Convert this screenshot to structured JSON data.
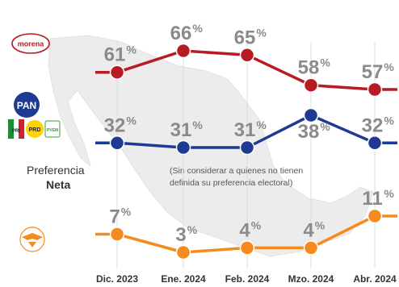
{
  "chart_data": {
    "type": "line",
    "categories": [
      "Dic. 2023",
      "Ene. 2024",
      "Feb. 2024",
      "Mzo. 2024",
      "Abr. 2024"
    ],
    "series": [
      {
        "logo": "morena",
        "color": "#b71c25",
        "values": [
          61,
          66,
          65,
          58,
          57
        ]
      },
      {
        "logo": "PAN / PRI / PRD",
        "color": "#1f3a93",
        "values": [
          32,
          31,
          31,
          38,
          32
        ]
      },
      {
        "logo": "movimiento-ciudadano-icon",
        "color": "#f58b1f",
        "values": [
          7,
          3,
          4,
          4,
          11
        ]
      }
    ],
    "title": "Preferencia Neta",
    "note": "(Sin considerar a quienes no tienen definida su preferencia electoral)",
    "value_suffix": "%"
  },
  "legend": {
    "morena_label": "morena",
    "pan_label": "PAN",
    "pri_label": "PRI",
    "prd_label": "PRD",
    "pvem_label": "PVEM",
    "title_line1": "Preferencia",
    "title_line2": "Neta",
    "note_line1": "(Sin considerar a quienes no tienen",
    "note_line2": "definida su preferencia electoral)"
  },
  "colors": {
    "map": "#ececec",
    "grid": "#dddddd"
  }
}
